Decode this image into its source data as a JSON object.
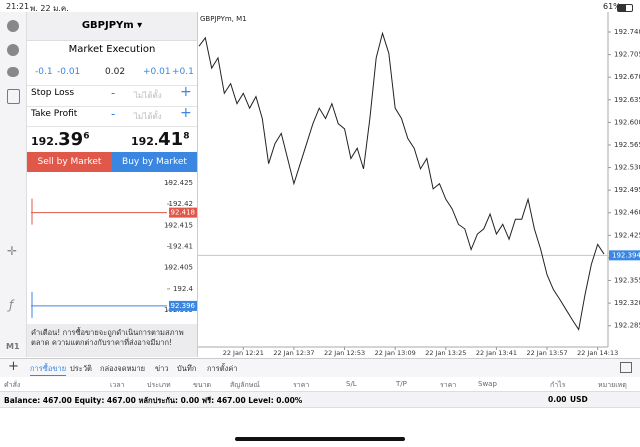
{
  "status_bar": {
    "time": "21:21",
    "date": "พ. 22 ม.ค.",
    "battery": "61%"
  },
  "order_panel": {
    "symbol": "GBPJPYm ▾",
    "execution": "Market Execution",
    "steps": [
      "-0.1",
      "-0.01",
      "0.02",
      "+0.01",
      "+0.1"
    ],
    "stop_loss": {
      "label": "Stop Loss",
      "minus": "-",
      "value": "ไม่ได้ตั้ง",
      "plus": "+"
    },
    "take_profit": {
      "label": "Take Profit",
      "minus": "-",
      "value": "ไม่ได้ตั้ง",
      "plus": "+"
    },
    "sell_price": {
      "head": "192.",
      "big": "39",
      "sup": "6"
    },
    "buy_price": {
      "head": "192.",
      "big": "41",
      "sup": "8"
    },
    "sell_button": "Sell by Market",
    "buy_button": "Buy by Market",
    "warning": "คำเตือน! การซื้อขายจะถูกดำเนินการตามสภาพตลาด ความแตกต่างกับราคาที่ส่งอาจมีมาก!"
  },
  "tick_chart": {
    "type": "line",
    "ylim": [
      192.3922,
      192.4264
    ],
    "yticks": [
      192.425,
      192.42,
      192.415,
      192.41,
      192.405,
      192.4,
      192.395
    ],
    "ask": {
      "value": 192.418,
      "label": "192.418",
      "color": "#e0584a"
    },
    "bid": {
      "value": 192.396,
      "label": "192.396",
      "color": "#3a86e0"
    }
  },
  "main_chart": {
    "type": "line",
    "title": "GBPJPYm, M1",
    "color": "#222222",
    "x": [
      "22 Jan 12:07",
      "22 Jan 12:09",
      "22 Jan 12:11",
      "22 Jan 12:13",
      "22 Jan 12:15",
      "22 Jan 12:17",
      "22 Jan 12:19",
      "22 Jan 12:21",
      "22 Jan 12:23",
      "22 Jan 12:25",
      "22 Jan 12:27",
      "22 Jan 12:29",
      "22 Jan 12:31",
      "22 Jan 12:33",
      "22 Jan 12:35",
      "22 Jan 12:37",
      "22 Jan 12:39",
      "22 Jan 12:41",
      "22 Jan 12:43",
      "22 Jan 12:45",
      "22 Jan 12:47",
      "22 Jan 12:49",
      "22 Jan 12:51",
      "22 Jan 12:53",
      "22 Jan 12:55",
      "22 Jan 12:57",
      "22 Jan 12:59",
      "22 Jan 13:01",
      "22 Jan 13:03",
      "22 Jan 13:05",
      "22 Jan 13:07",
      "22 Jan 13:09",
      "22 Jan 13:11",
      "22 Jan 13:13",
      "22 Jan 13:15",
      "22 Jan 13:17",
      "22 Jan 13:19",
      "22 Jan 13:21",
      "22 Jan 13:23",
      "22 Jan 13:25",
      "22 Jan 13:27",
      "22 Jan 13:29",
      "22 Jan 13:31",
      "22 Jan 13:33",
      "22 Jan 13:35",
      "22 Jan 13:37",
      "22 Jan 13:39",
      "22 Jan 13:41",
      "22 Jan 13:43",
      "22 Jan 13:45",
      "22 Jan 13:47",
      "22 Jan 13:49",
      "22 Jan 13:51",
      "22 Jan 13:53",
      "22 Jan 13:55",
      "22 Jan 13:57",
      "22 Jan 13:59",
      "22 Jan 14:01",
      "22 Jan 14:03",
      "22 Jan 14:05",
      "22 Jan 14:07",
      "22 Jan 14:09",
      "22 Jan 14:11",
      "22 Jan 14:13",
      "22 Jan 14:15"
    ],
    "values": [
      192.718,
      192.731,
      192.684,
      192.7,
      192.645,
      192.66,
      192.629,
      192.645,
      192.622,
      192.64,
      192.606,
      192.536,
      192.567,
      192.583,
      192.544,
      192.505,
      192.536,
      192.567,
      192.598,
      192.622,
      192.606,
      192.629,
      192.598,
      192.59,
      192.544,
      192.56,
      192.528,
      192.606,
      192.7,
      192.738,
      192.707,
      192.622,
      192.606,
      192.575,
      192.56,
      192.528,
      192.544,
      192.497,
      192.505,
      192.481,
      192.466,
      192.442,
      192.435,
      192.403,
      192.427,
      192.435,
      192.458,
      192.427,
      192.442,
      192.419,
      192.45,
      192.45,
      192.481,
      192.435,
      192.403,
      192.364,
      192.341,
      192.326,
      192.31,
      192.294,
      192.279,
      192.333,
      192.38,
      192.411,
      192.396
    ],
    "xticks": [
      "22 Jan 12:21",
      "22 Jan 12:37",
      "22 Jan 12:53",
      "22 Jan 13:09",
      "22 Jan 13:25",
      "22 Jan 13:41",
      "22 Jan 13:57",
      "22 Jan 14:13"
    ],
    "ylim": [
      192.252,
      192.771
    ],
    "yticks": [
      {
        "value": 192.74,
        "label": "192.740"
      },
      192.705,
      {
        "value": 192.67,
        "label": "192.670"
      },
      192.635,
      {
        "value": 192.6,
        "label": "192.600"
      },
      192.565,
      {
        "value": 192.53,
        "label": "192.530"
      },
      192.495,
      {
        "value": 192.46,
        "label": "192.460"
      },
      192.425,
      {
        "value": 192.39,
        "label": "192.390"
      },
      192.355,
      {
        "value": 192.32,
        "label": "192.320"
      },
      192.285
    ],
    "current": {
      "value": 192.394,
      "label": "192.394",
      "color": "#3a86e0"
    }
  },
  "tabs": {
    "add": "+",
    "items": [
      "การซื้อขาย",
      "ประวัติ",
      "กล่องจดหมาย",
      "ข่าว",
      "บันทึก",
      "การตั้งค่า"
    ]
  },
  "table": {
    "headers": [
      "คำสั่ง",
      "เวลา",
      "ประเภท",
      "ขนาด",
      "สัญลักษณ์",
      "ราคา",
      "S/L",
      "T/P",
      "ราคา",
      "Swap",
      "กำไร",
      "หมายเหตุ"
    ]
  },
  "balance": {
    "text": "Balance: 467.00 Equity: 467.00 หลักประกัน: 0.00 ฟรี: 467.00 Level: 0.00%",
    "profit": "0.00",
    "currency": "USD"
  }
}
